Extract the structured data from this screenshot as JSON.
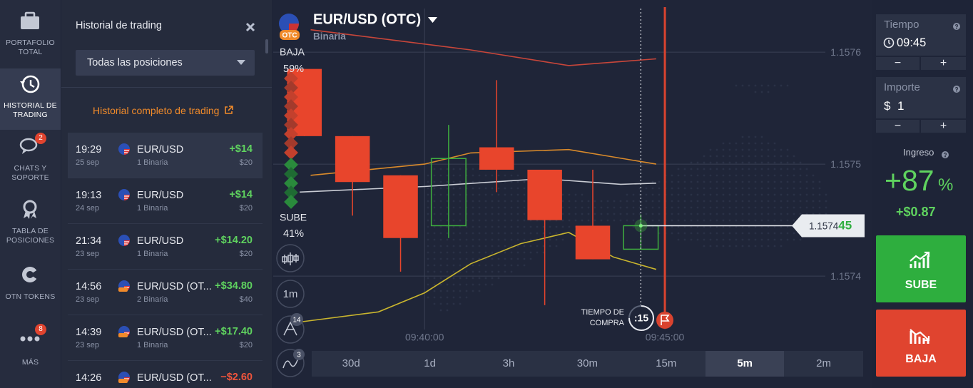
{
  "sidebar": [
    {
      "label": "PORTAFOLIO TOTAL"
    },
    {
      "label": "HISTORIAL DE TRADING",
      "selected": true
    },
    {
      "label": "CHATS Y SOPORTE",
      "badge": "2"
    },
    {
      "label": "TABLA DE POSICIONES"
    },
    {
      "label": "OTN TOKENS"
    },
    {
      "label": "MÁS",
      "badge": "8"
    }
  ],
  "history": {
    "title": "Historial de trading",
    "filter": "Todas las posiciones",
    "link": "Historial completo de trading",
    "rows": [
      {
        "time": "19:29",
        "date": "25 sep",
        "asset": "EUR/USD",
        "kind": "1 Binaria",
        "profit": "+$14",
        "amount": "$20",
        "selected": true
      },
      {
        "time": "19:13",
        "date": "24 sep",
        "asset": "EUR/USD",
        "kind": "1 Binaria",
        "profit": "+$14",
        "amount": "$20"
      },
      {
        "time": "21:34",
        "date": "23 sep",
        "asset": "EUR/USD",
        "kind": "1 Binaria",
        "profit": "+$14.20",
        "amount": "$20"
      },
      {
        "time": "14:56",
        "date": "23 sep",
        "asset": "EUR/USD (OT...",
        "kind": "2 Binaria",
        "profit": "+$34.80",
        "amount": "$40",
        "otc": true
      },
      {
        "time": "14:39",
        "date": "23 sep",
        "asset": "EUR/USD (OT...",
        "kind": "1 Binaria",
        "profit": "+$17.40",
        "amount": "$20",
        "otc": true
      },
      {
        "time": "14:26",
        "asset": "EUR/USD (OT...",
        "profit": "−$2.60",
        "otc": true,
        "loss": true
      }
    ]
  },
  "asset": {
    "name": "EUR/USD (OTC)",
    "type": "Binaria",
    "badge": "OTC"
  },
  "sentiment": {
    "down_label": "BAJA",
    "down": "59%",
    "up_label": "SUBE",
    "up": "41%"
  },
  "tools": {
    "interval": "1m",
    "indicators_badge": "14",
    "drawings_badge": "3"
  },
  "purchase": {
    "label_1": "TIEMPO DE",
    "label_2": "COMPRA",
    "countdown": ":15"
  },
  "price_tag": {
    "base": "1.1574",
    "tail": "45"
  },
  "timeframes": [
    "30d",
    "1d",
    "3h",
    "30m",
    "15m",
    "5m",
    "2m"
  ],
  "selected_timeframe": "5m",
  "trade": {
    "time_label": "Tiempo",
    "time": "09:45",
    "amount_label": "Importe",
    "currency": "$",
    "amount": "1",
    "minus": "−",
    "plus": "+",
    "payout_label": "Ingreso",
    "payout": "+87",
    "payout_unit": "%",
    "profit": "+$0.87",
    "up": "SUBE",
    "down": "BAJA"
  },
  "chart_data": {
    "type": "candlestick",
    "x": [
      37.5,
      38.5,
      39.5,
      40.5,
      41.5,
      42.5,
      43.5,
      44.5
    ],
    "open": [
      1.157585,
      1.157525,
      1.15749,
      1.157445,
      1.157515,
      1.157495,
      1.157445,
      1.157424
    ],
    "high": [
      1.157585,
      1.157525,
      1.15749,
      1.157535,
      1.157575,
      1.157495,
      1.157495,
      1.157455
    ],
    "low": [
      1.157525,
      1.157454,
      1.157404,
      1.157434,
      1.157475,
      1.157374,
      1.157415,
      1.157424
    ],
    "close": [
      1.157525,
      1.157484,
      1.157434,
      1.157505,
      1.157495,
      1.15745,
      1.157415,
      1.157445
    ],
    "up_color": "#3fae3f",
    "down_color": "#e8452c",
    "indicators": [
      {
        "color": "#c8463a",
        "x": [
          37.63,
          40.96,
          43.0,
          44.82
        ],
        "values": [
          1.15762,
          1.157602,
          1.157588,
          1.157594
        ]
      },
      {
        "color": "#d98a2b",
        "x": [
          37.63,
          40.0,
          40.96,
          43.0,
          44.82
        ],
        "values": [
          1.15749,
          1.1575,
          1.15751,
          1.157513,
          1.1575
        ]
      },
      {
        "color": "#c9ccd4",
        "x": [
          37.4,
          40.0,
          42.45,
          44.08,
          44.82
        ],
        "values": [
          1.157475,
          1.15748,
          1.157487,
          1.157482,
          1.157483
        ]
      },
      {
        "color": "#c9b52e",
        "x": [
          37.4,
          39.04,
          40.0,
          40.96,
          42.0,
          43.0,
          43.93,
          44.82
        ],
        "values": [
          1.157359,
          1.157368,
          1.157385,
          1.157411,
          1.157429,
          1.157439,
          1.157417,
          1.157406
        ]
      }
    ],
    "xlim": [
      36.85,
      49.2
    ],
    "ylim": [
      1.15733,
      1.15763
    ],
    "xticks": [
      {
        "value": 40,
        "label": "09:40:00"
      },
      {
        "value": 45,
        "label": "09:45:00"
      }
    ],
    "yticks": [
      1.1574,
      1.1575,
      1.1576
    ],
    "grid": true
  }
}
